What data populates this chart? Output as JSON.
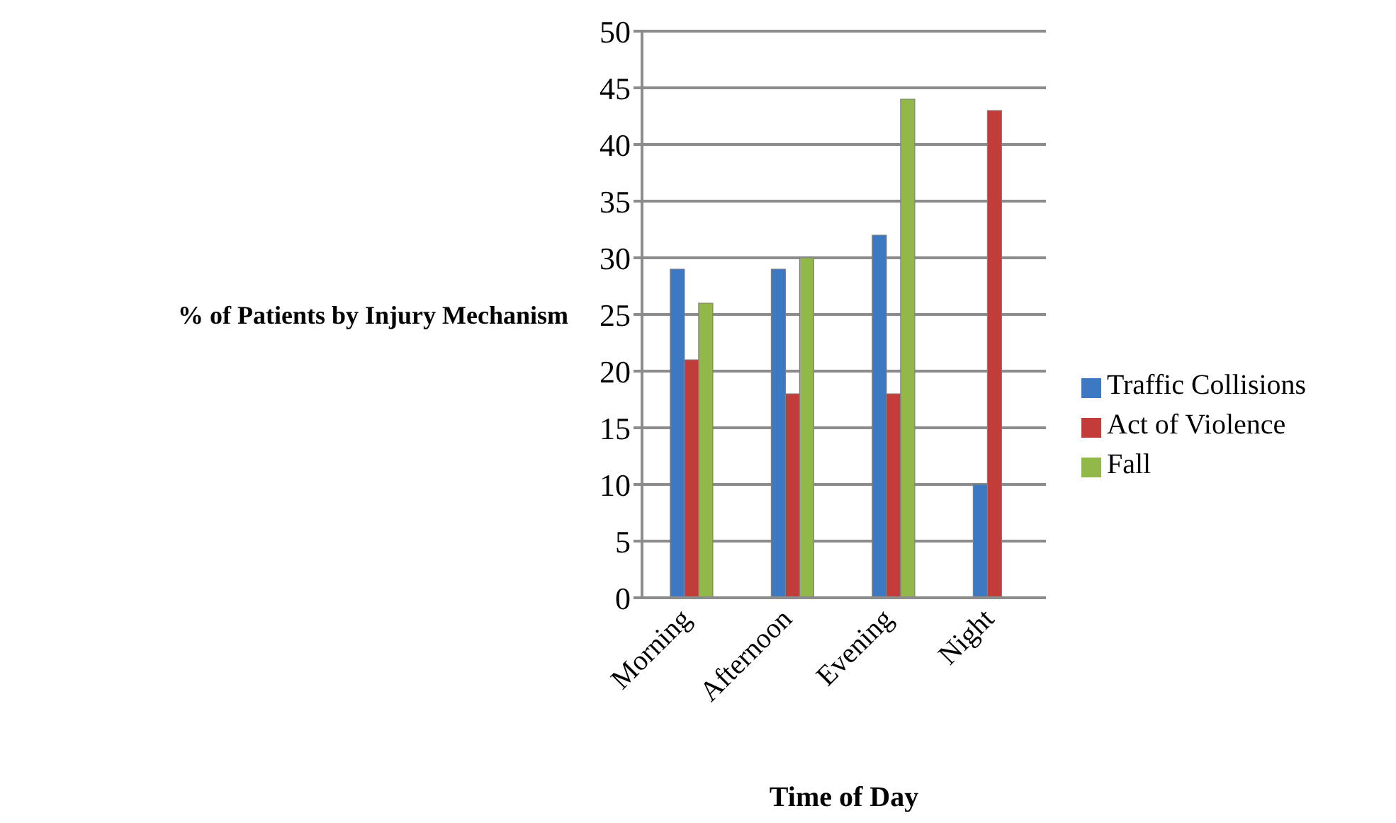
{
  "chart_data": {
    "type": "bar",
    "xlabel": "Time of Day",
    "ylabel": "% of Patients by Injury Mechanism",
    "categories": [
      "Morning",
      "Afternoon",
      "Evening",
      "Night"
    ],
    "series": [
      {
        "name": "Traffic Collisions",
        "color": "#3d78c3",
        "values": [
          29,
          29,
          32,
          10
        ]
      },
      {
        "name": "Act of Violence",
        "color": "#c23d3a",
        "values": [
          21,
          18,
          18,
          43
        ]
      },
      {
        "name": "Fall",
        "color": "#93b84a",
        "values": [
          26,
          30,
          44,
          null
        ]
      }
    ],
    "ylim": [
      0,
      50
    ],
    "yticks": [
      0,
      5,
      10,
      15,
      20,
      25,
      30,
      35,
      40,
      45,
      50
    ],
    "grid": "y",
    "legend": "right"
  }
}
